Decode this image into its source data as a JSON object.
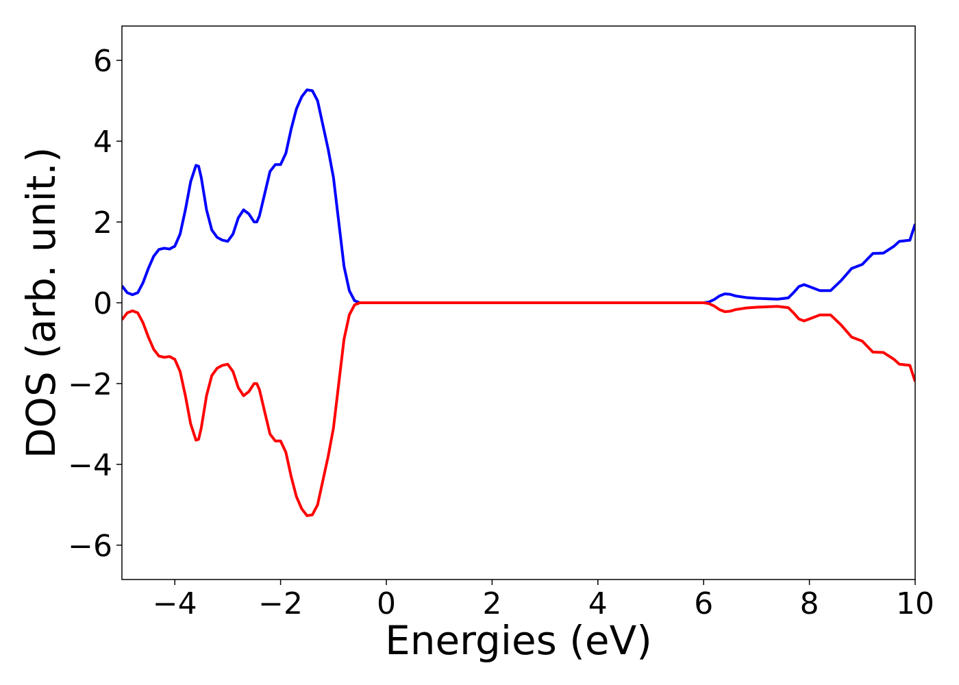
{
  "chart_data": {
    "type": "line",
    "x_label": "Energies (eV)",
    "y_label": "DOS (arb. unit.)",
    "x": [
      -5,
      -4.9,
      -4.8,
      -4.7,
      -4.6,
      -4.5,
      -4.4,
      -4.3,
      -4.2,
      -4.1,
      -4.0,
      -3.9,
      -3.8,
      -3.7,
      -3.6,
      -3.55,
      -3.5,
      -3.4,
      -3.3,
      -3.2,
      -3.1,
      -3.0,
      -2.9,
      -2.8,
      -2.7,
      -2.6,
      -2.5,
      -2.45,
      -2.4,
      -2.3,
      -2.2,
      -2.1,
      -2.0,
      -1.9,
      -1.8,
      -1.7,
      -1.6,
      -1.5,
      -1.4,
      -1.3,
      -1.2,
      -1.1,
      -1.0,
      -0.9,
      -0.8,
      -0.7,
      -0.6,
      -0.5,
      0,
      2,
      4,
      6.0,
      6.1,
      6.2,
      6.3,
      6.4,
      6.5,
      6.6,
      6.8,
      7.0,
      7.2,
      7.4,
      7.6,
      7.7,
      7.8,
      7.9,
      8.0,
      8.2,
      8.4,
      8.6,
      8.8,
      9.0,
      9.2,
      9.4,
      9.6,
      9.7,
      9.9,
      10
    ],
    "series": [
      {
        "color": "#0000ff",
        "values": [
          0.42,
          0.25,
          0.2,
          0.25,
          0.5,
          0.85,
          1.15,
          1.32,
          1.35,
          1.33,
          1.4,
          1.7,
          2.3,
          3.0,
          3.4,
          3.38,
          3.1,
          2.3,
          1.8,
          1.62,
          1.55,
          1.52,
          1.7,
          2.1,
          2.3,
          2.2,
          2.0,
          2.0,
          2.15,
          2.7,
          3.25,
          3.42,
          3.42,
          3.7,
          4.3,
          4.8,
          5.1,
          5.27,
          5.25,
          5.0,
          4.4,
          3.8,
          3.1,
          2.0,
          0.9,
          0.3,
          0.05,
          0,
          0,
          0,
          0,
          0,
          0.02,
          0.08,
          0.17,
          0.22,
          0.21,
          0.17,
          0.13,
          0.11,
          0.1,
          0.09,
          0.12,
          0.25,
          0.4,
          0.45,
          0.4,
          0.3,
          0.3,
          0.55,
          0.85,
          0.95,
          1.22,
          1.23,
          1.4,
          1.52,
          1.55,
          1.95
        ]
      },
      {
        "color": "#ff0000",
        "values": [
          -0.42,
          -0.25,
          -0.2,
          -0.25,
          -0.5,
          -0.85,
          -1.15,
          -1.32,
          -1.35,
          -1.33,
          -1.4,
          -1.7,
          -2.3,
          -3.0,
          -3.4,
          -3.38,
          -3.1,
          -2.3,
          -1.8,
          -1.62,
          -1.55,
          -1.52,
          -1.7,
          -2.1,
          -2.3,
          -2.2,
          -2.0,
          -2.0,
          -2.15,
          -2.7,
          -3.25,
          -3.42,
          -3.42,
          -3.7,
          -4.3,
          -4.8,
          -5.1,
          -5.27,
          -5.25,
          -5.0,
          -4.4,
          -3.8,
          -3.1,
          -2.0,
          -0.9,
          -0.3,
          -0.05,
          0,
          0,
          0,
          0,
          0,
          -0.02,
          -0.08,
          -0.17,
          -0.22,
          -0.21,
          -0.17,
          -0.13,
          -0.11,
          -0.1,
          -0.09,
          -0.12,
          -0.25,
          -0.4,
          -0.45,
          -0.4,
          -0.3,
          -0.3,
          -0.55,
          -0.85,
          -0.95,
          -1.22,
          -1.23,
          -1.4,
          -1.52,
          -1.55,
          -1.95
        ]
      }
    ],
    "xlim": [
      -5,
      10
    ],
    "ylim": [
      -6.85,
      6.85
    ],
    "xticks": [
      {
        "value": -4,
        "label": "−4"
      },
      {
        "value": -2,
        "label": "−2"
      },
      0,
      2,
      4,
      6,
      8,
      10
    ],
    "yticks": [
      {
        "value": -6,
        "label": "−6"
      },
      {
        "value": -4,
        "label": "−4"
      },
      {
        "value": -2,
        "label": "−2"
      },
      0,
      2,
      4,
      6
    ],
    "grid": false
  }
}
